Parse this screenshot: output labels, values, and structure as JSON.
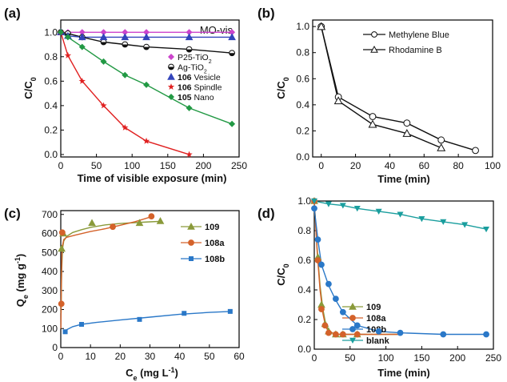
{
  "chart_data": [
    {
      "panel_label": "(a)",
      "type": "line",
      "annotation": "MO-vis",
      "xlabel": "Time of visible exposure (min)",
      "ylabel": "C/C0",
      "xlim": [
        0,
        250
      ],
      "ylim": [
        -0.02,
        1.1
      ],
      "xticks": [
        0,
        50,
        100,
        150,
        200,
        250
      ],
      "yticks": [
        0.0,
        0.2,
        0.4,
        0.6,
        0.8,
        1.0
      ],
      "ytick_labels": [
        "0.0",
        "0.2",
        "0.4",
        "0.6",
        "0.8",
        "1.0"
      ],
      "legend_position": "right",
      "series": [
        {
          "name": "P25-TiO2",
          "legend_html": "P25-TiO<tspan baseline-shift=\"sub\" font-size=\"7\">2</tspan>",
          "color": "#cc44cc",
          "marker": "diamond",
          "x": [
            0,
            10,
            30,
            60,
            90,
            120,
            180,
            240
          ],
          "y": [
            1.0,
            1.0,
            1.0,
            1.0,
            1.0,
            1.0,
            1.0,
            1.0
          ]
        },
        {
          "name": "Ag-TiO2",
          "legend_html": "Ag-TiO<tspan baseline-shift=\"sub\" font-size=\"7\">2</tspan>",
          "color": "#111111",
          "marker": "halfcircle",
          "x": [
            0,
            10,
            30,
            60,
            90,
            120,
            180,
            240
          ],
          "y": [
            1.0,
            0.99,
            0.96,
            0.92,
            0.9,
            0.88,
            0.86,
            0.83
          ]
        },
        {
          "name": "106 Vesicle",
          "legend_html": "<tspan font-weight=\"bold\">106</tspan> Vesicle",
          "color": "#3344bb",
          "marker": "triangle",
          "x": [
            0,
            10,
            30,
            60,
            90,
            120,
            180,
            240
          ],
          "y": [
            1.0,
            0.97,
            0.96,
            0.96,
            0.96,
            0.96,
            0.96,
            0.96
          ]
        },
        {
          "name": "106 Spindle",
          "legend_html": "<tspan font-weight=\"bold\">106</tspan> Spindle",
          "color": "#e02020",
          "marker": "star",
          "x": [
            0,
            10,
            30,
            60,
            90,
            120,
            180
          ],
          "y": [
            1.0,
            0.81,
            0.6,
            0.4,
            0.22,
            0.11,
            0.0
          ]
        },
        {
          "name": "105 Nano",
          "legend_html": "<tspan font-weight=\"bold\">105</tspan> Nano",
          "color": "#229944",
          "marker": "diamond",
          "x": [
            0,
            10,
            30,
            60,
            90,
            120,
            180,
            240
          ],
          "y": [
            1.0,
            0.96,
            0.88,
            0.76,
            0.65,
            0.57,
            0.38,
            0.25
          ]
        }
      ]
    },
    {
      "panel_label": "(b)",
      "type": "line",
      "xlabel": "Time (min)",
      "ylabel": "C/C0",
      "xlim": [
        -5,
        100
      ],
      "ylim": [
        0,
        1.05
      ],
      "xticks": [
        0,
        20,
        40,
        60,
        80,
        100
      ],
      "yticks": [
        0.0,
        0.2,
        0.4,
        0.6,
        0.8,
        1.0
      ],
      "ytick_labels": [
        "0.0",
        "0.2",
        "0.4",
        "0.6",
        "0.8",
        "1.0"
      ],
      "legend_position": "top-right",
      "series": [
        {
          "name": "Methylene Blue",
          "color": "#111111",
          "marker": "opencircle",
          "x": [
            0,
            10,
            30,
            50,
            70,
            90
          ],
          "y": [
            1.0,
            0.46,
            0.31,
            0.26,
            0.13,
            0.05
          ]
        },
        {
          "name": "Rhodamine B",
          "color": "#111111",
          "marker": "opentriangle",
          "x": [
            0,
            10,
            30,
            50,
            70
          ],
          "y": [
            1.0,
            0.43,
            0.25,
            0.18,
            0.07
          ]
        }
      ]
    },
    {
      "panel_label": "(c)",
      "type": "line",
      "xlabel": "Ce (mg L-1)",
      "ylabel": "Qe (mg g-1)",
      "xlim": [
        0,
        60
      ],
      "ylim": [
        0,
        720
      ],
      "xticks": [
        0,
        10,
        20,
        30,
        40,
        50,
        60
      ],
      "yticks": [
        0,
        100,
        200,
        300,
        400,
        500,
        600,
        700
      ],
      "ytick_labels": [
        "0",
        "100",
        "200",
        "300",
        "400",
        "500",
        "600",
        "700"
      ],
      "legend_position": "top-right",
      "series": [
        {
          "name": "109",
          "color": "#8a9a3a",
          "marker": "triangle",
          "x": [
            0.3,
            0.8,
            10.5,
            26.5,
            33.5
          ],
          "y": [
            520,
            600,
            655,
            655,
            665
          ],
          "fit_x": [
            0.1,
            0.3,
            0.6,
            1,
            2,
            4,
            7,
            10,
            15,
            20,
            25,
            30,
            34
          ],
          "fit_y": [
            180,
            400,
            520,
            560,
            585,
            605,
            620,
            632,
            645,
            652,
            657,
            661,
            664
          ]
        },
        {
          "name": "108a",
          "color": "#d4622a",
          "marker": "circle",
          "x": [
            0.2,
            0.5,
            17.5,
            30.5
          ],
          "y": [
            230,
            605,
            635,
            690
          ],
          "fit_x": [
            0.05,
            0.15,
            0.4,
            1,
            2,
            5,
            10,
            15,
            20,
            25,
            31
          ],
          "fit_y": [
            100,
            300,
            520,
            568,
            580,
            592,
            610,
            625,
            643,
            662,
            690
          ]
        },
        {
          "name": "108b",
          "color": "#2a78c8",
          "marker": "square",
          "x": [
            1.5,
            7,
            26.5,
            41.5,
            57
          ],
          "y": [
            83,
            122,
            148,
            180,
            190
          ],
          "fit_x": [
            1.5,
            4,
            7,
            12,
            20,
            30,
            40,
            50,
            57
          ],
          "fit_y": [
            90,
            110,
            122,
            132,
            145,
            160,
            175,
            185,
            190
          ]
        }
      ]
    },
    {
      "panel_label": "(d)",
      "type": "line",
      "xlabel": "Time (min)",
      "ylabel": "C/C0",
      "xlim": [
        0,
        250
      ],
      "ylim": [
        0,
        1.0
      ],
      "xticks": [
        0,
        50,
        100,
        150,
        200,
        250
      ],
      "yticks": [
        0.0,
        0.2,
        0.4,
        0.6,
        0.8,
        1.0
      ],
      "ytick_labels": [
        "0.0",
        "0.2",
        "0.4",
        "0.6",
        "0.8",
        "1.0"
      ],
      "legend_position": "bottom-right",
      "series": [
        {
          "name": "109",
          "color": "#8a9a3a",
          "marker": "triangle",
          "x": [
            0,
            5,
            10,
            15,
            20,
            30,
            40,
            60
          ],
          "y": [
            1.0,
            0.62,
            0.3,
            0.17,
            0.12,
            0.1,
            0.1,
            0.1
          ],
          "fit_x": [
            0,
            4,
            8,
            12,
            16,
            20,
            25,
            30,
            40,
            60,
            120
          ],
          "fit_y": [
            1.0,
            0.68,
            0.43,
            0.27,
            0.17,
            0.13,
            0.11,
            0.1,
            0.1,
            0.1,
            0.1
          ]
        },
        {
          "name": "108a",
          "color": "#d4622a",
          "marker": "circle",
          "x": [
            0,
            5,
            10,
            15,
            20,
            30,
            40,
            60
          ],
          "y": [
            1.0,
            0.6,
            0.27,
            0.16,
            0.11,
            0.1,
            0.1,
            0.1
          ],
          "fit_x": [
            0,
            4,
            8,
            12,
            16,
            20,
            25,
            30,
            40,
            60,
            120
          ],
          "fit_y": [
            1.0,
            0.66,
            0.4,
            0.24,
            0.15,
            0.12,
            0.11,
            0.1,
            0.1,
            0.1,
            0.1
          ]
        },
        {
          "name": "108b",
          "color": "#2a78c8",
          "marker": "circle",
          "x": [
            0,
            5,
            10,
            20,
            30,
            40,
            60,
            90,
            120,
            180,
            240
          ],
          "y": [
            0.95,
            0.74,
            0.57,
            0.44,
            0.34,
            0.25,
            0.16,
            0.12,
            0.11,
            0.1,
            0.1
          ],
          "fit_x": [
            0,
            5,
            10,
            20,
            30,
            40,
            60,
            90,
            120,
            180,
            240
          ],
          "fit_y": [
            0.95,
            0.74,
            0.57,
            0.43,
            0.33,
            0.25,
            0.16,
            0.12,
            0.11,
            0.1,
            0.1
          ]
        },
        {
          "name": "blank",
          "color": "#1a9e9e",
          "marker": "downtriangle",
          "x": [
            0,
            20,
            40,
            60,
            90,
            120,
            150,
            180,
            210,
            240
          ],
          "y": [
            1.0,
            0.98,
            0.97,
            0.95,
            0.93,
            0.91,
            0.88,
            0.86,
            0.84,
            0.81
          ]
        }
      ]
    }
  ]
}
